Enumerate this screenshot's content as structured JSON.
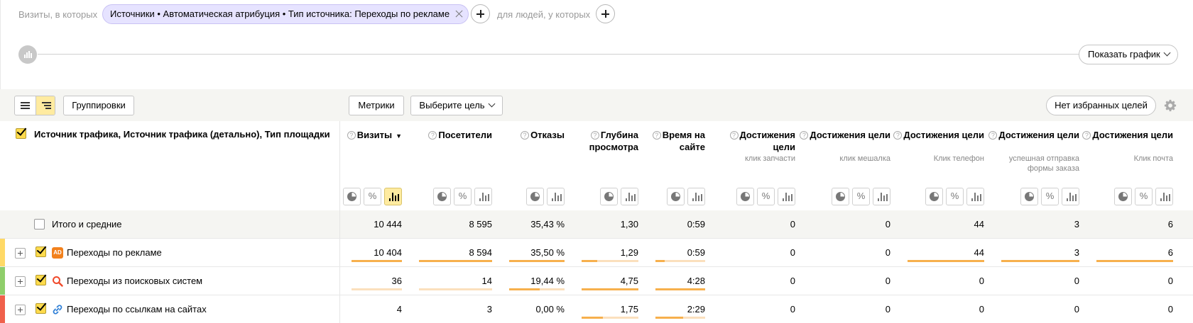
{
  "filter": {
    "visits_label": "Визиты, в которых",
    "segment": "Источники • Автоматическая атрибуция • Тип источника: Переходы по рекламе",
    "people_label": "для людей, у которых"
  },
  "chart": {
    "show_button": "Показать график"
  },
  "toolbar": {
    "groupings": "Группировки",
    "metrics": "Метрики",
    "select_goal": "Выберите цель",
    "no_favorites": "Нет избранных целей"
  },
  "table": {
    "dimension_header": "Источник трафика, Источник трафика (детально), Тип площадки",
    "columns": [
      {
        "label": "Визиты",
        "sub": "",
        "sorted": true
      },
      {
        "label": "Посетители",
        "sub": ""
      },
      {
        "label": "Отказы",
        "sub": ""
      },
      {
        "label": "Глубина просмотра",
        "sub": ""
      },
      {
        "label": "Время на сайте",
        "sub": ""
      },
      {
        "label": "Достижения цели",
        "sub": "клик запчасти"
      },
      {
        "label": "Достижения цели",
        "sub": "клик мешалка"
      },
      {
        "label": "Достижения цели",
        "sub": "Клик телефон"
      },
      {
        "label": "Достижения цели",
        "sub": "успешная отправка формы заказа"
      },
      {
        "label": "Достижения цели",
        "sub": "Клик почта"
      }
    ],
    "totals": {
      "label": "Итого и средние",
      "values": [
        "10 444",
        "8 595",
        "35,43 %",
        "1,30",
        "0:59",
        "0",
        "0",
        "44",
        "3",
        "6"
      ]
    },
    "rows": [
      {
        "label": "Переходы по рекламе",
        "icon": "ad-icon",
        "marker_color": "#ffd966",
        "values": [
          "10 404",
          "8 594",
          "35,50 %",
          "1,29",
          "0:59",
          "0",
          "0",
          "44",
          "3",
          "6"
        ],
        "bars": [
          1.0,
          1.0,
          1.0,
          0.27,
          0.18,
          0,
          0,
          1.0,
          1.0,
          1.0
        ]
      },
      {
        "label": "Переходы из поисковых систем",
        "icon": "search-icon",
        "marker_color": "#8fce6b",
        "values": [
          "36",
          "14",
          "19,44 %",
          "4,75",
          "4:28",
          "0",
          "0",
          "0",
          "0",
          "0"
        ],
        "bars": [
          0.004,
          0.002,
          0.55,
          1.0,
          1.0,
          0,
          0,
          0,
          0,
          0
        ]
      },
      {
        "label": "Переходы по ссылкам на сайтах",
        "icon": "link-icon",
        "marker_color": "#f0604b",
        "values": [
          "4",
          "3",
          "0,00 %",
          "1,75",
          "2:29",
          "0",
          "0",
          "0",
          "0",
          "0"
        ],
        "bars": [
          0.0,
          0.0,
          0.0,
          0.37,
          0.55,
          0,
          0,
          0,
          0,
          0
        ]
      }
    ]
  }
}
